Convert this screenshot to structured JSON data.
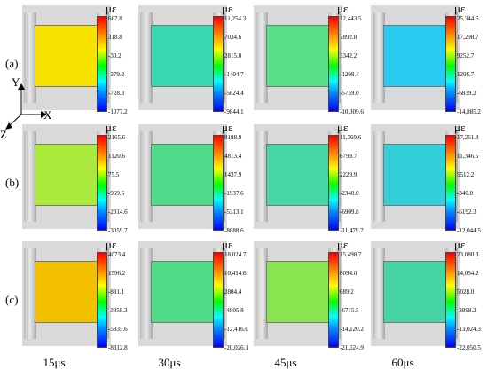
{
  "unit": "με",
  "rows": [
    {
      "label": "(a)",
      "cols": [
        {
          "ticks": [
            "667.8",
            "318.8",
            "-30.2",
            "-379.2",
            "-728.3",
            "-1077.2"
          ],
          "fill": "#f8e200"
        },
        {
          "ticks": [
            "11,254.3",
            "7034.6",
            "2815.0",
            "-1404.7",
            "-5624.4",
            "-9844.1"
          ],
          "fill": "#38d7b2"
        },
        {
          "ticks": [
            "12,443.5",
            "7892.8",
            "3342.2",
            "-1208.4",
            "-5759.0",
            "-10,309.6"
          ],
          "fill": "#57e089"
        },
        {
          "ticks": [
            "25,344.6",
            "17,298.7",
            "9252.7",
            "1206.7",
            "-6839.2",
            "-14,885.2"
          ],
          "fill": "#2ac9ef"
        }
      ]
    },
    {
      "label": "(b)",
      "cols": [
        {
          "ticks": [
            "2165.6",
            "1120.6",
            "75.5",
            "-969.6",
            "-2014.6",
            "-3059.7"
          ],
          "fill": "#a9ea3d"
        },
        {
          "ticks": [
            "8188.9",
            "4813.4",
            "1437.9",
            "-1937.6",
            "-5313.1",
            "-8688.6"
          ],
          "fill": "#4edc8b"
        },
        {
          "ticks": [
            "11,369.6",
            "6799.7",
            "2229.9",
            "-2340.0",
            "-6909.8",
            "-11,479.7"
          ],
          "fill": "#47d7a4"
        },
        {
          "ticks": [
            "17,261.8",
            "11,346.5",
            "5512.2",
            "-340.0",
            "-6192.3",
            "-12,044.5"
          ],
          "fill": "#33cfd8"
        }
      ]
    },
    {
      "label": "(c)",
      "cols": [
        {
          "ticks": [
            "4073.4",
            "1596.2",
            "-881.1",
            "-3358.3",
            "-5835.6",
            "-8312.8"
          ],
          "fill": "#f4c100"
        },
        {
          "ticks": [
            "18,024.7",
            "10,414.6",
            "2804.4",
            "-4805.8",
            "-12,416.0",
            "-20,026.1"
          ],
          "fill": "#51db87"
        },
        {
          "ticks": [
            "15,498.7",
            "8094.0",
            "689.2",
            "-6715.5",
            "-14,120.2",
            "-21,524.9"
          ],
          "fill": "#8ae44d"
        },
        {
          "ticks": [
            "23,080.3",
            "14,054.2",
            "5028.0",
            "-3998.2",
            "-13,024.3",
            "-22,050.5"
          ],
          "fill": "#46d4a5"
        }
      ]
    }
  ],
  "times": [
    "15μs",
    "30μs",
    "45μs",
    "60μs"
  ],
  "axes": {
    "y": "Y",
    "x": "X",
    "z": "Z"
  },
  "colors": {
    "cold": "#0000ff",
    "hot": "#ff0000"
  }
}
